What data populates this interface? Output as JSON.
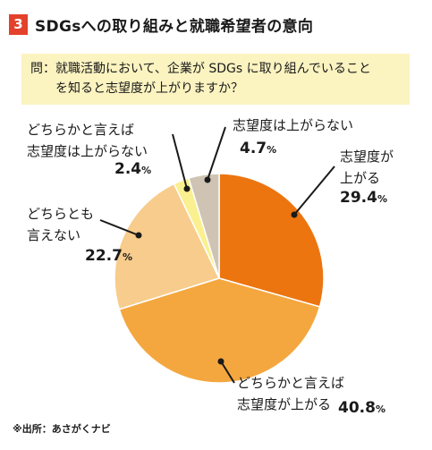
{
  "header": {
    "number": "3",
    "title": "SDGsへの取り組みと就職希望者の意向"
  },
  "question": {
    "line1": "問：就職活動において、企業が SDGs に取り組んでいること",
    "line2": "　　を知ると志望度が上がりますか？"
  },
  "footnote": "※出所：あさがくナビ",
  "chart_data": {
    "type": "pie",
    "slices": [
      {
        "label": "志望度が上がる",
        "label_lines": [
          "志望度が",
          "上がる"
        ],
        "value": 29.4,
        "value_text": "29.4",
        "color": "#ec7510"
      },
      {
        "label": "どちらかと言えば志望度が上がる",
        "label_lines": [
          "どちらかと言えば",
          "志望度が上がる"
        ],
        "value": 40.8,
        "value_text": "40.8",
        "color": "#f4a73e"
      },
      {
        "label": "どちらとも言えない",
        "label_lines": [
          "どちらとも",
          "言えない"
        ],
        "value": 22.7,
        "value_text": "22.7",
        "color": "#f7cc8c"
      },
      {
        "label": "どちらかと言えば志望度は上がらない",
        "label_lines": [
          "どちらかと言えば",
          "志望度は上がらない"
        ],
        "value": 2.4,
        "value_text": "2.4",
        "color": "#fbf08f"
      },
      {
        "label": "志望度は上がらない",
        "label_lines": [
          "志望度は上がらない"
        ],
        "value": 4.7,
        "value_text": "4.7",
        "color": "#cfc4b4"
      }
    ],
    "unit": "%"
  }
}
